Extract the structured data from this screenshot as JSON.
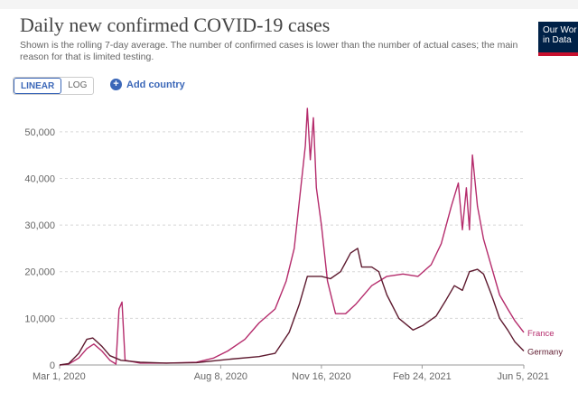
{
  "header": {
    "title": "Daily new confirmed COVID-19 cases",
    "subtitle": "Shown is the rolling 7-day average. The number of confirmed cases is lower than the number of actual cases; the main reason for that is limited testing."
  },
  "logo": {
    "line1": "Our Wor",
    "line2": "in Data"
  },
  "controls": {
    "linear_label": "LINEAR",
    "log_label": "LOG",
    "add_country_label": "Add country"
  },
  "colors": {
    "france": "#b52c6c",
    "germany": "#5e1a2f",
    "grid": "#d8d8d8",
    "accent": "#3b67b8"
  },
  "chart_data": {
    "type": "line",
    "title": "Daily new confirmed COVID-19 cases",
    "x_ticks": [
      "Mar 1, 2020",
      "Aug 8, 2020",
      "Nov 16, 2020",
      "Feb 24, 2021",
      "Jun 5, 2021"
    ],
    "y_ticks": [
      "0",
      "10,000",
      "20,000",
      "30,000",
      "40,000",
      "50,000"
    ],
    "ylim": [
      0,
      55000
    ],
    "xlim": [
      "2020-03-01",
      "2021-06-05"
    ],
    "grid": true,
    "series": [
      {
        "name": "France",
        "points": [
          [
            "2020-03-01",
            0
          ],
          [
            "2020-03-10",
            200
          ],
          [
            "2020-03-20",
            1500
          ],
          [
            "2020-03-28",
            3500
          ],
          [
            "2020-04-04",
            4500
          ],
          [
            "2020-04-12",
            3000
          ],
          [
            "2020-04-20",
            1000
          ],
          [
            "2020-04-26",
            200
          ],
          [
            "2020-04-29",
            12000
          ],
          [
            "2020-05-02",
            13500
          ],
          [
            "2020-05-05",
            1000
          ],
          [
            "2020-05-20",
            400
          ],
          [
            "2020-06-15",
            400
          ],
          [
            "2020-07-15",
            600
          ],
          [
            "2020-08-01",
            1500
          ],
          [
            "2020-08-15",
            3000
          ],
          [
            "2020-09-01",
            5500
          ],
          [
            "2020-09-15",
            9000
          ],
          [
            "2020-10-01",
            12000
          ],
          [
            "2020-10-12",
            18000
          ],
          [
            "2020-10-20",
            25000
          ],
          [
            "2020-10-26",
            37000
          ],
          [
            "2020-10-31",
            47000
          ],
          [
            "2020-11-02",
            55000
          ],
          [
            "2020-11-05",
            44000
          ],
          [
            "2020-11-08",
            53000
          ],
          [
            "2020-11-11",
            38000
          ],
          [
            "2020-11-16",
            30000
          ],
          [
            "2020-11-22",
            18000
          ],
          [
            "2020-11-30",
            11000
          ],
          [
            "2020-12-10",
            11000
          ],
          [
            "2020-12-20",
            13000
          ],
          [
            "2021-01-05",
            17000
          ],
          [
            "2021-01-20",
            19000
          ],
          [
            "2021-02-05",
            19500
          ],
          [
            "2021-02-20",
            19000
          ],
          [
            "2021-03-05",
            21500
          ],
          [
            "2021-03-15",
            26000
          ],
          [
            "2021-03-25",
            34000
          ],
          [
            "2021-04-01",
            39000
          ],
          [
            "2021-04-05",
            29000
          ],
          [
            "2021-04-09",
            38000
          ],
          [
            "2021-04-12",
            29000
          ],
          [
            "2021-04-15",
            45000
          ],
          [
            "2021-04-20",
            34000
          ],
          [
            "2021-04-26",
            27000
          ],
          [
            "2021-05-04",
            21000
          ],
          [
            "2021-05-12",
            15000
          ],
          [
            "2021-05-20",
            12000
          ],
          [
            "2021-05-27",
            9500
          ],
          [
            "2021-06-05",
            7000
          ]
        ]
      },
      {
        "name": "Germany",
        "points": [
          [
            "2020-03-01",
            0
          ],
          [
            "2020-03-10",
            300
          ],
          [
            "2020-03-20",
            2500
          ],
          [
            "2020-03-28",
            5500
          ],
          [
            "2020-04-03",
            5800
          ],
          [
            "2020-04-12",
            4000
          ],
          [
            "2020-04-20",
            2000
          ],
          [
            "2020-05-01",
            1000
          ],
          [
            "2020-05-20",
            600
          ],
          [
            "2020-06-15",
            400
          ],
          [
            "2020-07-15",
            500
          ],
          [
            "2020-08-15",
            1200
          ],
          [
            "2020-09-15",
            1800
          ],
          [
            "2020-10-01",
            2500
          ],
          [
            "2020-10-15",
            7000
          ],
          [
            "2020-10-25",
            13000
          ],
          [
            "2020-11-02",
            19000
          ],
          [
            "2020-11-16",
            19000
          ],
          [
            "2020-11-25",
            18500
          ],
          [
            "2020-12-05",
            20000
          ],
          [
            "2020-12-15",
            24000
          ],
          [
            "2020-12-22",
            25000
          ],
          [
            "2020-12-26",
            21000
          ],
          [
            "2021-01-05",
            21000
          ],
          [
            "2021-01-12",
            20000
          ],
          [
            "2021-01-20",
            15000
          ],
          [
            "2021-02-01",
            10000
          ],
          [
            "2021-02-15",
            7500
          ],
          [
            "2021-02-25",
            8500
          ],
          [
            "2021-03-10",
            10500
          ],
          [
            "2021-03-20",
            14000
          ],
          [
            "2021-03-28",
            17000
          ],
          [
            "2021-04-05",
            16000
          ],
          [
            "2021-04-12",
            20000
          ],
          [
            "2021-04-20",
            20500
          ],
          [
            "2021-04-26",
            19500
          ],
          [
            "2021-05-04",
            15000
          ],
          [
            "2021-05-12",
            10000
          ],
          [
            "2021-05-20",
            7500
          ],
          [
            "2021-05-27",
            5000
          ],
          [
            "2021-06-05",
            3000
          ]
        ]
      }
    ]
  }
}
